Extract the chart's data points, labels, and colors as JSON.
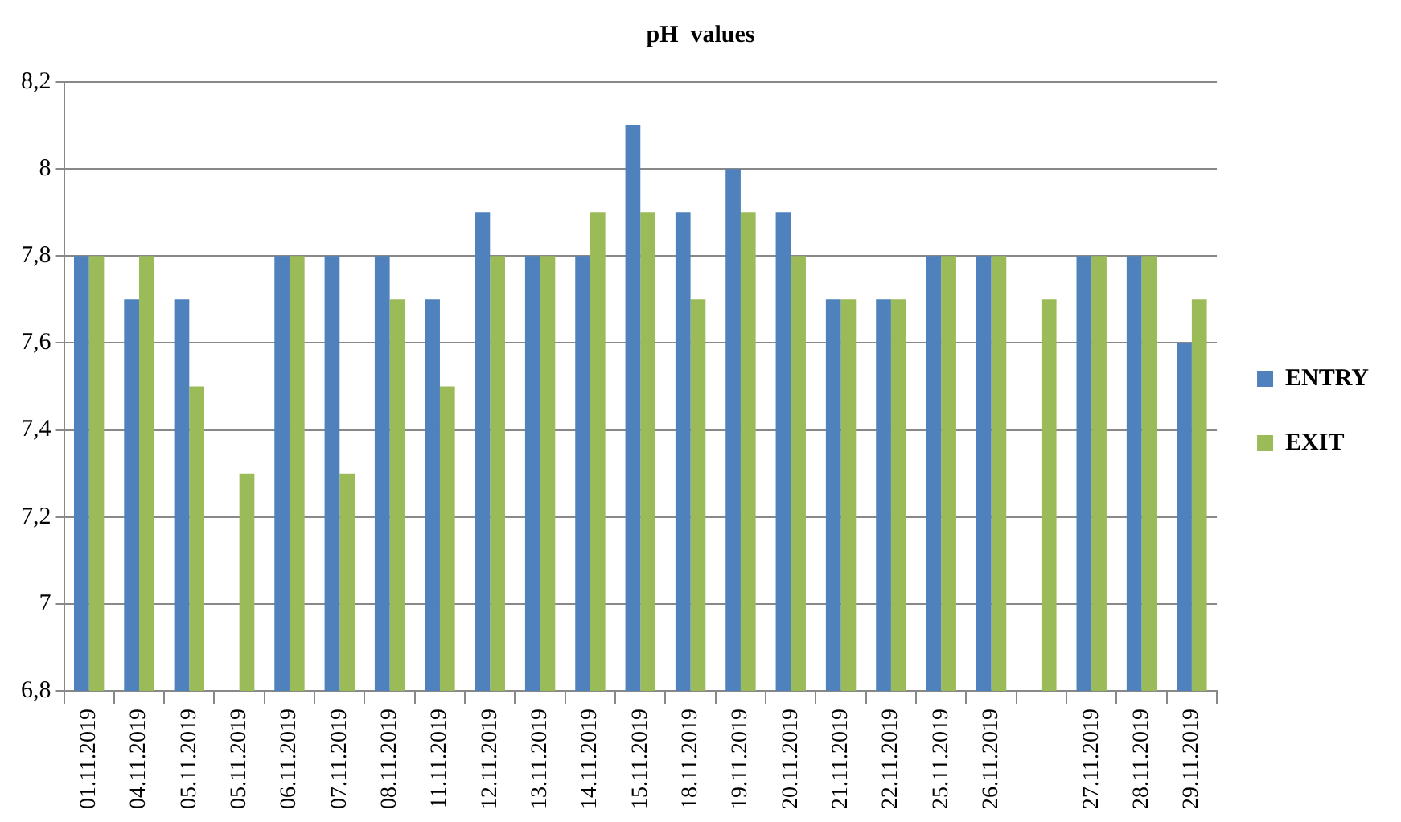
{
  "chart_data": {
    "type": "bar",
    "title": "pH  values",
    "categories": [
      "01.11.2019",
      "04.11.2019",
      "05.11.2019",
      "05.11.2019",
      "06.11.2019",
      "07.11.2019",
      "08.11.2019",
      "11.11.2019",
      "12.11.2019",
      "13.11.2019",
      "14.11.2019",
      "15.11.2019",
      "18.11.2019",
      "19.11.2019",
      "20.11.2019",
      "21.11.2019",
      "22.11.2019",
      "25.11.2019",
      "26.11.2019",
      null,
      "27.11.2019",
      "28.11.2019",
      "29.11.2019"
    ],
    "series": [
      {
        "name": "ENTRY",
        "color": "#4f81bd",
        "values": [
          7.8,
          7.7,
          7.7,
          null,
          7.8,
          7.8,
          7.8,
          7.7,
          7.9,
          7.8,
          7.8,
          8.1,
          7.9,
          8.0,
          7.9,
          7.7,
          7.7,
          7.8,
          7.8,
          null,
          7.8,
          7.8,
          7.6
        ]
      },
      {
        "name": "EXIT",
        "color": "#9bbb59",
        "values": [
          7.8,
          7.8,
          7.5,
          7.3,
          7.8,
          7.3,
          7.7,
          7.5,
          7.8,
          7.8,
          7.9,
          7.9,
          7.7,
          7.9,
          7.8,
          7.7,
          7.7,
          7.8,
          7.8,
          7.7,
          7.8,
          7.8,
          7.7
        ]
      }
    ],
    "ylim": [
      6.8,
      8.2
    ],
    "yticks": [
      {
        "value": 6.8,
        "label": "6,8"
      },
      {
        "value": 7,
        "label": "7"
      },
      {
        "value": 7.2,
        "label": "7,2"
      },
      {
        "value": 7.4,
        "label": "7,4"
      },
      {
        "value": 7.6,
        "label": "7,6"
      },
      {
        "value": 7.8,
        "label": "7,8"
      },
      {
        "value": 8,
        "label": "8"
      },
      {
        "value": 8.2,
        "label": "8,2"
      }
    ],
    "grid": "y",
    "legend": "right"
  }
}
